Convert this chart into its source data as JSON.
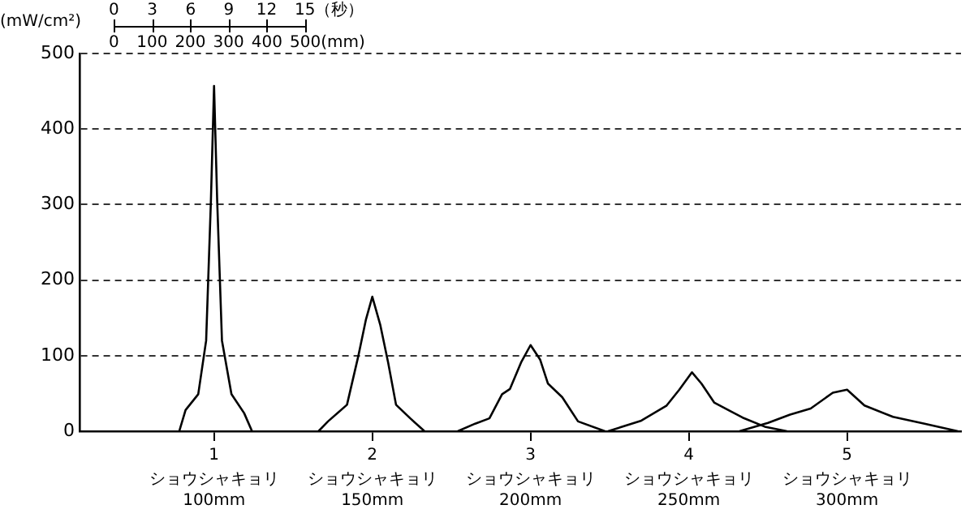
{
  "chart_data": {
    "type": "line",
    "ylabel": "(mW/cm²)",
    "annotations": [
      "0 3 6 9 12 15（秒）",
      "0 100 200 300 400 500(mm)",
      "ショウシャキョリ\n100mm",
      "ショウシャキョリ\n150mm",
      "ショウシャキョリ\n200mm",
      "ショウシャキョリ\n250mm",
      "ショウシャキョリ\n300mm"
    ],
    "xlim": [
      0.15,
      5.72
    ],
    "xticks": [
      1,
      2,
      3,
      4,
      5
    ],
    "ylim": [
      0,
      500
    ],
    "yticks": [
      0,
      100,
      200,
      300,
      400,
      500
    ],
    "grid": "y",
    "legend": false,
    "marker": "none",
    "line_style": "solid",
    "series": [
      {
        "color": "#000000",
        "x": [
          0.78,
          0.82,
          0.9,
          0.95,
          0.98,
          1.0,
          1.02,
          1.05,
          1.11,
          1.19,
          1.24
        ],
        "values": [
          0,
          28,
          49,
          120,
          304,
          457,
          304,
          120,
          49,
          24,
          0
        ]
      },
      {
        "color": "#000000",
        "x": [
          1.66,
          1.72,
          1.84,
          1.91,
          1.96,
          2.0,
          2.05,
          2.1,
          2.15,
          2.24,
          2.33
        ],
        "values": [
          0,
          13,
          35,
          98,
          148,
          178,
          141,
          91,
          35,
          17,
          0
        ]
      },
      {
        "color": "#000000",
        "x": [
          2.54,
          2.65,
          2.74,
          2.82,
          2.87,
          2.94,
          3.0,
          3.06,
          3.11,
          3.2,
          3.3,
          3.47
        ],
        "values": [
          0,
          10,
          17,
          49,
          56,
          91,
          114,
          95,
          63,
          45,
          13,
          0
        ]
      },
      {
        "color": "#000000",
        "x": [
          3.49,
          3.7,
          3.86,
          3.94,
          4.02,
          4.08,
          4.16,
          4.34,
          4.48,
          4.62
        ],
        "values": [
          0,
          14,
          34,
          55,
          78,
          63,
          38,
          18,
          6,
          0
        ]
      },
      {
        "color": "#000000",
        "x": [
          4.32,
          4.5,
          4.64,
          4.77,
          4.91,
          5.0,
          5.11,
          5.29,
          5.49,
          5.7
        ],
        "values": [
          0,
          11,
          22,
          30,
          51,
          55,
          34,
          19,
          10,
          0
        ]
      }
    ]
  }
}
